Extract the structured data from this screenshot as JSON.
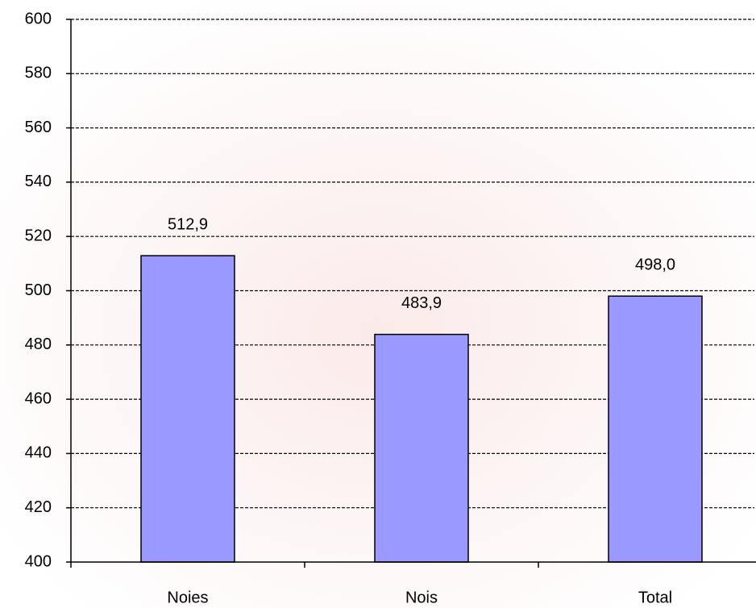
{
  "chart_data": {
    "type": "bar",
    "categories": [
      "Noies",
      "Nois",
      "Total"
    ],
    "values": [
      512.9,
      483.9,
      498.0
    ],
    "value_labels": [
      "512,9",
      "483,9",
      "498,0"
    ],
    "color": "#9999ff",
    "ylim": [
      400,
      600
    ],
    "yticks": [
      400,
      420,
      440,
      460,
      480,
      500,
      520,
      540,
      560,
      580,
      600
    ],
    "grid": true
  }
}
